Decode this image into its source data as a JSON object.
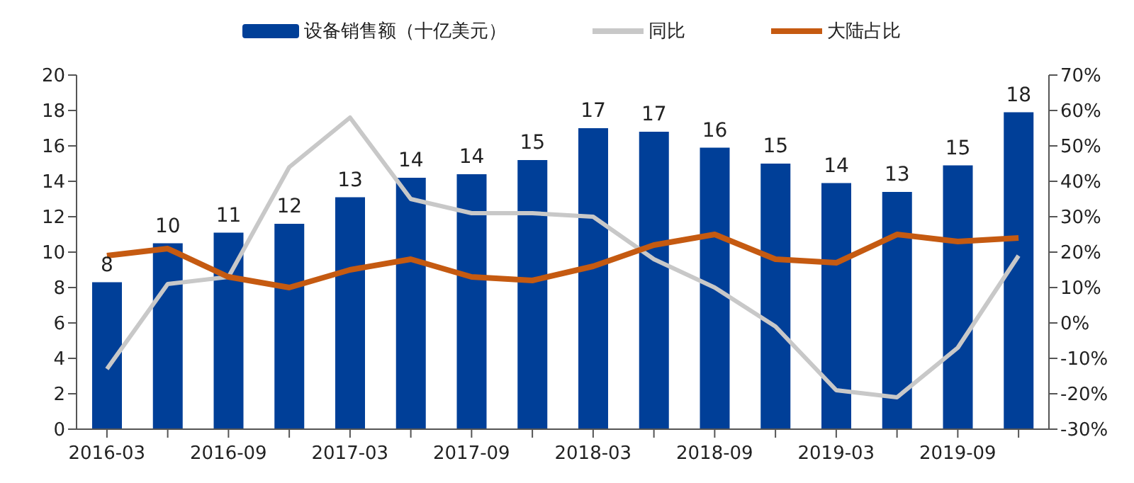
{
  "chart_data": {
    "type": "bar",
    "categories": [
      "2016-03",
      null,
      "2016-09",
      null,
      "2017-03",
      null,
      "2017-09",
      null,
      "2018-03",
      null,
      "2018-09",
      null,
      "2019-03",
      null,
      "2019-09",
      null
    ],
    "series": [
      {
        "name": "设备销售额（十亿美元）",
        "color": "#003f98",
        "values": [
          8.3,
          10.5,
          11.1,
          11.6,
          13.1,
          14.2,
          14.4,
          15.2,
          17.0,
          16.8,
          15.9,
          15.0,
          13.9,
          13.4,
          14.9,
          17.9
        ],
        "value_labels": [
          "8",
          "10",
          "11",
          "12",
          "13",
          "14",
          "14",
          "15",
          "17",
          "17",
          "16",
          "15",
          "14",
          "13",
          "15",
          "18"
        ]
      },
      {
        "name": "同比",
        "type": "line",
        "axis": "y2",
        "color": "#c8c8c8",
        "values": [
          -13,
          11,
          13,
          44,
          58,
          35,
          31,
          31,
          30,
          18,
          10,
          -1,
          -19,
          -21,
          -7,
          19
        ]
      },
      {
        "name": "大陆占比",
        "type": "line",
        "axis": "y2",
        "color": "#c55a11",
        "values": [
          19,
          21,
          13,
          10,
          15,
          18,
          13,
          12,
          16,
          22,
          25,
          18,
          17,
          25,
          23,
          24
        ]
      }
    ],
    "ylim": [
      0,
      20
    ],
    "yticks": [
      0,
      2,
      4,
      6,
      8,
      10,
      12,
      14,
      16,
      18,
      20
    ],
    "y2lim": [
      -30,
      70
    ],
    "y2ticks": [
      {
        "value": -30,
        "label": "-30%"
      },
      {
        "value": -20,
        "label": "-20%"
      },
      {
        "value": -10,
        "label": "-10%"
      },
      {
        "value": 0,
        "label": "0%"
      },
      {
        "value": 10,
        "label": "10%"
      },
      {
        "value": 20,
        "label": "20%"
      },
      {
        "value": 30,
        "label": "30%"
      },
      {
        "value": 40,
        "label": "40%"
      },
      {
        "value": 50,
        "label": "50%"
      },
      {
        "value": 60,
        "label": "60%"
      },
      {
        "value": 70,
        "label": "70%"
      }
    ],
    "legend": "top",
    "marker": "none",
    "grid": false
  }
}
